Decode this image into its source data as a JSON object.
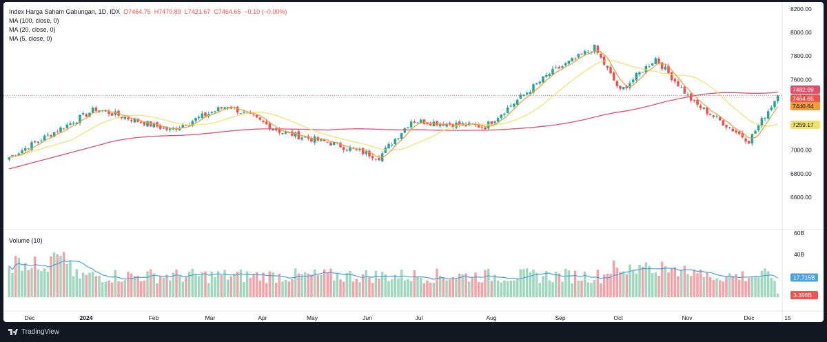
{
  "legend": {
    "symbol": "Index Harga Saham Gabungan, 1D, IDX",
    "open": "O7464.75",
    "high": "H7470.89",
    "low": "L7421.67",
    "close": "C7464.65",
    "change": "−0.10 (−0.00%)",
    "ma100": "MA (100, close, 0)",
    "ma20": "MA (20, close, 0)",
    "ma5": "MA (5, close, 0)",
    "volume": "Volume (10)"
  },
  "footer": {
    "brand": "TradingView"
  },
  "colors": {
    "up": "#26a69a",
    "down": "#ef5350",
    "vol_up": "#9fd8bf",
    "vol_down": "#f4a3a8",
    "ma100": "#e0506a",
    "ma20": "#f2e267",
    "ma5": "#f29c35",
    "vol_ma": "#4aa3df"
  },
  "chart_data": [
    {
      "type": "candlestick",
      "title": "Index Harga Saham Gabungan, 1D, IDX",
      "ylim": [
        6500,
        8200
      ],
      "y_ticks": [
        "8200.00",
        "8000.00",
        "7800.00",
        "7600.00",
        "7400.00",
        "7200.00",
        "7000.00",
        "6800.00",
        "6600.00"
      ],
      "x_ticks": [
        "Dec",
        "2024",
        "Feb",
        "Mar",
        "Apr",
        "May",
        "Jun",
        "Jul",
        "Aug",
        "Sep",
        "Oct",
        "Nov",
        "Dec",
        "15"
      ],
      "close_path": [
        [
          "Dec",
          6940
        ],
        [
          "2024",
          7350
        ],
        [
          "Feb",
          7170
        ],
        [
          "Mar",
          7380
        ],
        [
          "Apr",
          7150
        ],
        [
          "May",
          7060
        ],
        [
          "Jun",
          6940
        ],
        [
          "Jul",
          7250
        ],
        [
          "Aug",
          7200
        ],
        [
          "Sep",
          7650
        ],
        [
          "Sep end",
          7870
        ],
        [
          "Oct",
          7500
        ],
        [
          "Oct end",
          7780
        ],
        [
          "Nov",
          7400
        ],
        [
          "Dec",
          7080
        ],
        [
          "15",
          7464.65
        ]
      ],
      "series": [
        {
          "name": "MA (100, close, 0)",
          "last": "7482.99"
        },
        {
          "name": "MA (20, close, 0)",
          "last": "7259.17"
        },
        {
          "name": "MA (5, close, 0)",
          "last": "7440.64"
        }
      ],
      "price_labels": [
        "7482.99",
        "7464.65",
        "7440.64",
        "7259.17"
      ],
      "last_close": 7464.65
    },
    {
      "type": "bar",
      "title": "Volume (10)",
      "y_ticks": [
        "60B",
        "40B"
      ],
      "series": [
        {
          "name": "Volume (10)",
          "last": "17.715B"
        },
        {
          "name": "Volume",
          "last": "3.396B"
        }
      ]
    }
  ]
}
